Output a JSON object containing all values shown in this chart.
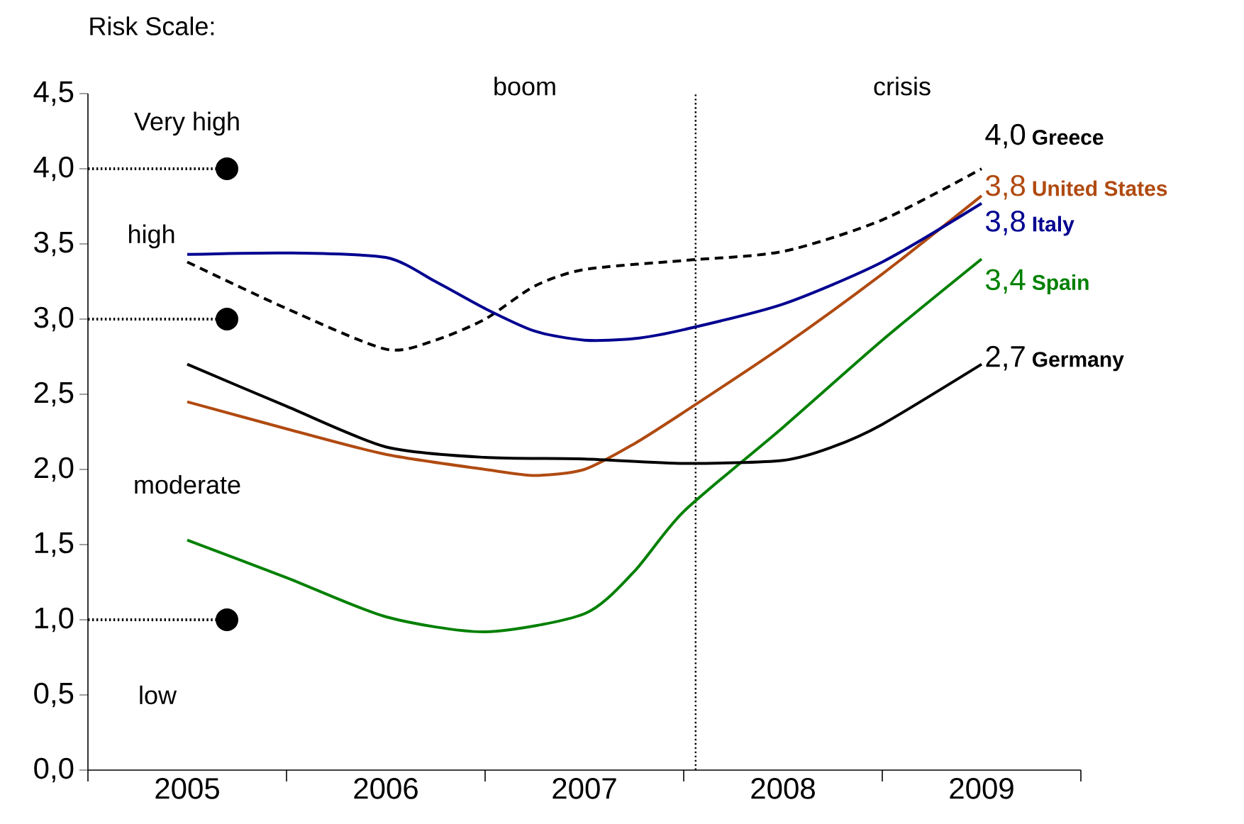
{
  "chart_data": {
    "type": "line",
    "xlim": [
      2004.5,
      2009.5
    ],
    "ylim": [
      0,
      4.5
    ],
    "xticks": [
      {
        "value": 2005,
        "label": "2005"
      },
      {
        "value": 2006,
        "label": "2006"
      },
      {
        "value": 2007,
        "label": "2007"
      },
      {
        "value": 2008,
        "label": "2008"
      },
      {
        "value": 2009,
        "label": "2009"
      },
      {
        "value": 2004.5,
        "label": null
      },
      {
        "value": 2005.5,
        "label": null
      },
      {
        "value": 2006.5,
        "label": null
      },
      {
        "value": 2007.5,
        "label": null
      },
      {
        "value": 2008.5,
        "label": null
      },
      {
        "value": 2009.5,
        "label": null
      }
    ],
    "yticks": [
      {
        "value": 0,
        "label": "0,0"
      },
      {
        "value": 0.5,
        "label": "0,5"
      },
      {
        "value": 1,
        "label": "1,0"
      },
      {
        "value": 1.5,
        "label": "1,5"
      },
      {
        "value": 2,
        "label": "2,0"
      },
      {
        "value": 2.5,
        "label": "2,5"
      },
      {
        "value": 3,
        "label": "3,0"
      },
      {
        "value": 3.5,
        "label": "3,5"
      },
      {
        "value": 4,
        "label": "4,0"
      },
      {
        "value": 4.5,
        "label": "4,5"
      }
    ],
    "marker": "none",
    "series": [
      {
        "name": "Greece",
        "color": "#000000",
        "line_style": "dashed",
        "x": [
          2005,
          2005.5,
          2006,
          2006.25,
          2006.5,
          2006.75,
          2007,
          2007.5,
          2008,
          2008.5,
          2009
        ],
        "values": [
          3.38,
          3.07,
          2.8,
          2.86,
          3.0,
          3.22,
          3.33,
          3.39,
          3.45,
          3.66,
          4.0
        ],
        "value_labels": [
          null,
          null,
          null,
          null,
          null,
          null,
          null,
          null,
          null,
          null,
          "4,0"
        ]
      },
      {
        "name": "United States",
        "color": "#b04a10",
        "line_style": "solid",
        "x": [
          2005,
          2005.5,
          2006,
          2006.5,
          2006.75,
          2007,
          2007.25,
          2007.5,
          2008,
          2008.5,
          2009
        ],
        "values": [
          2.45,
          2.27,
          2.1,
          2.0,
          1.96,
          2.0,
          2.17,
          2.38,
          2.82,
          3.3,
          3.82
        ],
        "value_labels": [
          null,
          null,
          null,
          null,
          null,
          null,
          null,
          null,
          null,
          null,
          "3,8"
        ]
      },
      {
        "name": "Italy",
        "color": "#000090",
        "line_style": "solid",
        "x": [
          2005,
          2005.5,
          2006,
          2006.25,
          2006.5,
          2006.75,
          2007,
          2007.25,
          2007.5,
          2008,
          2008.5,
          2009
        ],
        "values": [
          3.43,
          3.44,
          3.41,
          3.25,
          3.07,
          2.92,
          2.86,
          2.87,
          2.93,
          3.1,
          3.38,
          3.77
        ],
        "value_labels": [
          null,
          null,
          null,
          null,
          null,
          null,
          null,
          null,
          null,
          null,
          null,
          "3,8"
        ]
      },
      {
        "name": "Spain",
        "color": "#008000",
        "line_style": "solid",
        "x": [
          2005,
          2005.5,
          2006,
          2006.5,
          2007,
          2007.25,
          2007.5,
          2008,
          2008.5,
          2009
        ],
        "values": [
          1.53,
          1.28,
          1.02,
          0.92,
          1.04,
          1.32,
          1.72,
          2.28,
          2.86,
          3.4
        ],
        "value_labels": [
          null,
          null,
          null,
          null,
          null,
          null,
          null,
          null,
          null,
          "3,4"
        ]
      },
      {
        "name": "Germany",
        "color": "#000000",
        "line_style": "solid",
        "x": [
          2005,
          2005.5,
          2006,
          2006.5,
          2007,
          2007.5,
          2008,
          2008.25,
          2008.5,
          2009
        ],
        "values": [
          2.7,
          2.42,
          2.15,
          2.08,
          2.07,
          2.04,
          2.06,
          2.15,
          2.3,
          2.7
        ],
        "value_labels": [
          null,
          null,
          null,
          null,
          null,
          null,
          null,
          null,
          null,
          "2,7"
        ]
      },
      {
        "type": "scatter",
        "color": "#000000",
        "marker": "circle",
        "x": [
          2005.2,
          2005.2,
          2005.2
        ],
        "values": [
          4.0,
          3.0,
          1.0
        ]
      }
    ],
    "ref_lines": [
      {
        "axis": "x",
        "value": 2007.56,
        "line_style": "dotted",
        "color": "#000000"
      },
      {
        "axis": "y",
        "value": 4.0,
        "line_style": "dotted",
        "color": "#000000"
      },
      {
        "axis": "y",
        "value": 3.0,
        "line_style": "dotted",
        "color": "#000000"
      },
      {
        "axis": "y",
        "value": 1.0,
        "line_style": "dotted",
        "color": "#000000"
      }
    ],
    "annotations": [
      "Risk Scale:",
      "boom",
      "crisis",
      "Very high",
      "high",
      "moderate",
      "low"
    ]
  }
}
